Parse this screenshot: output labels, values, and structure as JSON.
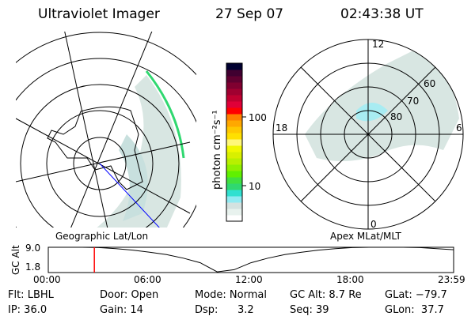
{
  "header": {
    "title": "Ultraviolet Imager",
    "date": "27 Sep 07",
    "time": "02:43:38 UT"
  },
  "colorbar": {
    "label": "photon cm⁻²s⁻¹",
    "tick_labels": [
      "10",
      "100"
    ],
    "colors": [
      "#ffffff",
      "#e8f2ee",
      "#d4e2e0",
      "#90eaf2",
      "#30e0d0",
      "#30d870",
      "#40e040",
      "#60f000",
      "#90f000",
      "#b8f000",
      "#d8f000",
      "#f0f800",
      "#fff878",
      "#ffe000",
      "#ffc800",
      "#ffa800",
      "#ff8000",
      "#ff0000",
      "#e00038",
      "#c00030",
      "#a00030",
      "#800030",
      "#600030",
      "#400030",
      "#000030"
    ]
  },
  "left_map": {
    "caption": "Geographic Lat/Lon",
    "track_color": "#0000ff"
  },
  "right_map": {
    "caption": "Apex MLat/MLT",
    "mlt_labels": {
      "top": "12",
      "bottom": "0",
      "left": "18",
      "right": "6"
    },
    "lat_labels": [
      "80",
      "70",
      "60"
    ]
  },
  "chart_data": {
    "type": "line",
    "ylabel": "GC Alt",
    "y_tick_labels": [
      "9.0",
      "1.8"
    ],
    "x_tick_labels": [
      "00:00",
      "06:00",
      "12:00",
      "18:00",
      "23:59"
    ],
    "x_hours": [
      0,
      1,
      2,
      3,
      4,
      5,
      6,
      7,
      8,
      9,
      10,
      11,
      12,
      13,
      14,
      15,
      16,
      17,
      18,
      19,
      20,
      21,
      22,
      23,
      24
    ],
    "y_values": [
      9.0,
      9.0,
      9.0,
      8.9,
      8.6,
      8.2,
      7.6,
      6.9,
      5.9,
      4.6,
      2.0,
      2.6,
      4.6,
      5.9,
      6.9,
      7.6,
      8.2,
      8.6,
      8.9,
      9.0,
      9.0,
      9.0,
      8.9,
      8.6,
      8.3
    ],
    "ylim": [
      1.8,
      9.0
    ],
    "current_time_hours": 2.727,
    "marker_color": "#ff0000"
  },
  "status": {
    "filter": "Flt: LBHL",
    "ip": "IP: 36.0",
    "door": "Door: Open",
    "gain": "Gain: 14",
    "mode": "Mode: Normal",
    "dsp_label": "Dsp:",
    "dsp_value": "3.2",
    "gc_alt": "GC Alt: 8.7 Re",
    "seq": "Seq: 39",
    "glat": "GLat: −79.7",
    "glon": "GLon:  37.7"
  }
}
